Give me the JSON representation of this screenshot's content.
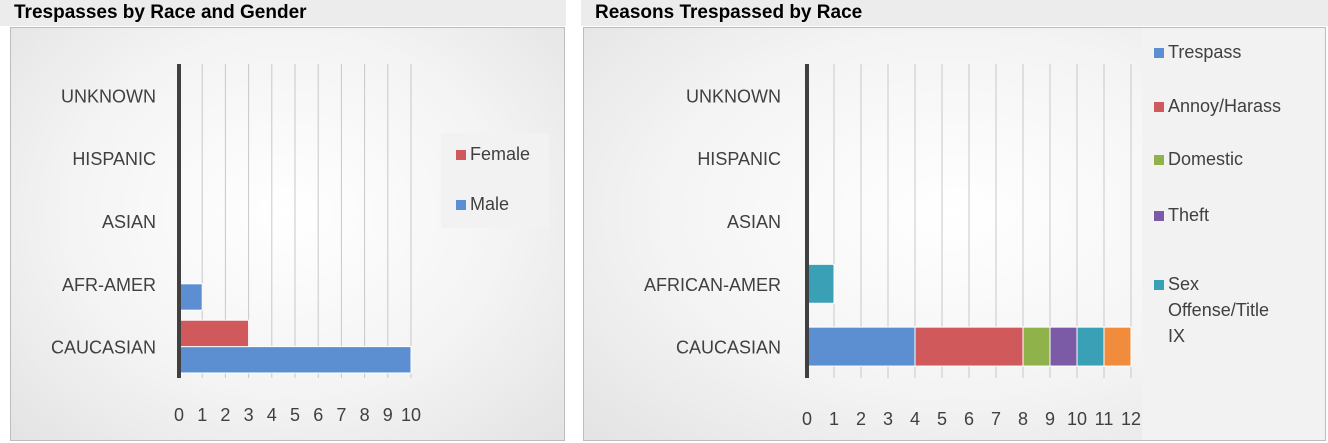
{
  "chart_data": [
    {
      "type": "bar",
      "orientation": "horizontal",
      "stacked": false,
      "title": "Trespasses by Race and Gender",
      "categories": [
        "CAUCASIAN",
        "AFR-AMER",
        "ASIAN",
        "HISPANIC",
        "UNKNOWN"
      ],
      "series": [
        {
          "name": "Male",
          "color": "#5b8fd2",
          "values": [
            10,
            1,
            0,
            0,
            0
          ]
        },
        {
          "name": "Female",
          "color": "#d0595b",
          "values": [
            3,
            0,
            0,
            0,
            0
          ]
        }
      ],
      "legend_order": [
        "Female",
        "Male"
      ],
      "xlim": [
        0,
        10
      ],
      "xticks": [
        "0",
        "1",
        "2",
        "3",
        "4",
        "5",
        "6",
        "7",
        "8",
        "9",
        "10"
      ],
      "grid": true,
      "legend_position": "right"
    },
    {
      "type": "bar",
      "orientation": "horizontal",
      "stacked": true,
      "title": "Reasons Trespassed by Race",
      "categories": [
        "CAUCASIAN",
        "AFRICAN-AMER",
        "ASIAN",
        "HISPANIC",
        "UNKNOWN"
      ],
      "series": [
        {
          "name": "Trespass",
          "color": "#5b8fd2",
          "values": [
            4,
            0,
            0,
            0,
            0
          ]
        },
        {
          "name": "Annoy/Harass",
          "color": "#d0595b",
          "values": [
            4,
            0,
            0,
            0,
            0
          ]
        },
        {
          "name": "Domestic",
          "color": "#8fb34a",
          "values": [
            1,
            0,
            0,
            0,
            0
          ]
        },
        {
          "name": "Theft",
          "color": "#7b5aa6",
          "values": [
            1,
            0,
            0,
            0,
            0
          ]
        },
        {
          "name": "Sex Offense/Title IX",
          "color": "#3aa0b5",
          "values": [
            1,
            1,
            0,
            0,
            0
          ]
        },
        {
          "name": "",
          "color": "#f08c3c",
          "values": [
            1,
            0,
            0,
            0,
            0
          ]
        }
      ],
      "legend_order": [
        "Trespass",
        "Annoy/Harass",
        "Domestic",
        "Theft",
        "Sex Offense/Title IX"
      ],
      "legend_lines": {
        "Trespass": [
          "Trespass"
        ],
        "Annoy/Harass": [
          "Annoy/Harass"
        ],
        "Domestic": [
          "Domestic"
        ],
        "Theft": [
          "Theft"
        ],
        "Sex Offense/Title IX": [
          "Sex",
          "Offense/Title",
          "IX"
        ]
      },
      "xlim": [
        0,
        12
      ],
      "xticks": [
        "0",
        "1",
        "2",
        "3",
        "4",
        "5",
        "6",
        "7",
        "8",
        "9",
        "10",
        "11",
        "12"
      ],
      "grid": true,
      "legend_position": "right"
    }
  ]
}
